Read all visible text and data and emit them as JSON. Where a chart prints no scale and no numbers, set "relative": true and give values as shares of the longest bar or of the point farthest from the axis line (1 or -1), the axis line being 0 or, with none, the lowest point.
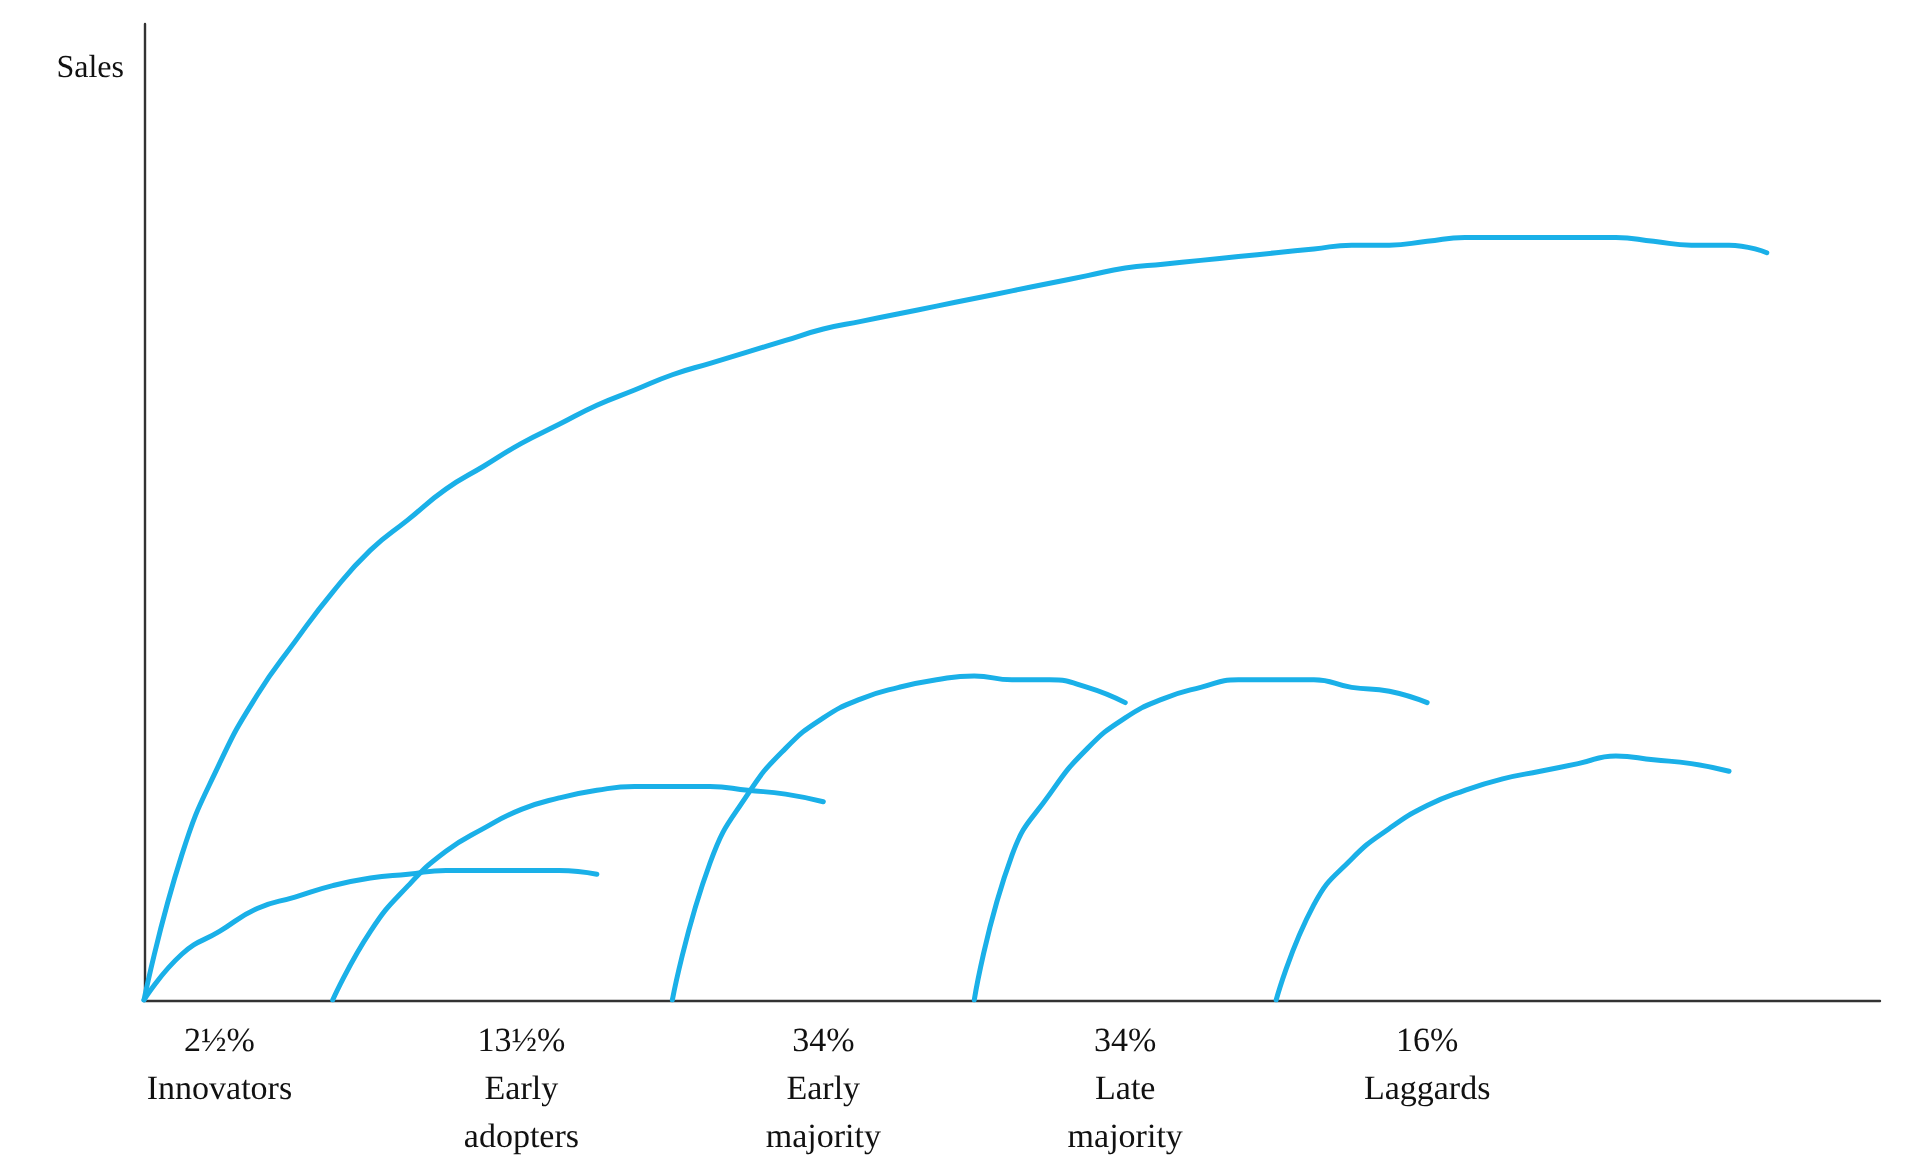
{
  "chart_data": {
    "type": "line",
    "relative": true,
    "ylabel": "Sales",
    "categories": [
      null,
      null,
      "2½%\nInnovators",
      null,
      null,
      null,
      null,
      null,
      null,
      null,
      "13½%\nEarly\nadopters",
      null,
      null,
      null,
      null,
      null,
      null,
      null,
      "34%\nEarly\nmajority",
      null,
      null,
      null,
      null,
      null,
      null,
      null,
      "34%\nLate\nmajority",
      null,
      null,
      null,
      null,
      null,
      null,
      null,
      "16%\nLaggards",
      null,
      null,
      null,
      null,
      null,
      null,
      null,
      null,
      null,
      null,
      null,
      null
    ],
    "series": [
      {
        "color": "#1ab0e8",
        "values": [
          0,
          0.19,
          0.31,
          0.4,
          0.47,
          0.535,
          0.59,
          0.63,
          0.67,
          0.7,
          0.73,
          0.755,
          0.78,
          0.8,
          0.82,
          0.835,
          0.85,
          0.865,
          0.88,
          0.89,
          0.9,
          0.91,
          0.92,
          0.93,
          0.94,
          0.95,
          0.96,
          0.965,
          0.97,
          0.975,
          0.98,
          0.985,
          0.99,
          0.99,
          0.995,
          1,
          1,
          1,
          1,
          1,
          0.995,
          0.99,
          0.99,
          0.98,
          null,
          null,
          null
        ]
      },
      {
        "color": "#1ab0e8",
        "values": [
          0,
          0.06,
          0.09,
          0.12,
          0.135,
          0.15,
          0.16,
          0.165,
          0.17,
          0.17,
          0.17,
          0.17,
          0.165,
          null,
          null,
          null,
          null,
          null,
          null,
          null,
          null,
          null,
          null,
          null,
          null,
          null,
          null,
          null,
          null,
          null,
          null,
          null,
          null,
          null,
          null,
          null,
          null,
          null,
          null,
          null,
          null,
          null,
          null,
          null,
          null,
          null,
          null
        ]
      },
      {
        "color": "#1ab0e8",
        "values": [
          null,
          null,
          null,
          null,
          null,
          0,
          0.09,
          0.15,
          0.195,
          0.225,
          0.25,
          0.265,
          0.275,
          0.28,
          0.28,
          0.28,
          0.275,
          0.27,
          0.26,
          null,
          null,
          null,
          null,
          null,
          null,
          null,
          null,
          null,
          null,
          null,
          null,
          null,
          null,
          null,
          null,
          null,
          null,
          null,
          null,
          null,
          null,
          null,
          null,
          null,
          null,
          null,
          null
        ]
      },
      {
        "color": "#1ab0e8",
        "values": [
          null,
          null,
          null,
          null,
          null,
          null,
          null,
          null,
          null,
          null,
          null,
          null,
          null,
          null,
          0,
          0.18,
          0.27,
          0.33,
          0.37,
          0.395,
          0.41,
          0.42,
          0.425,
          0.42,
          0.42,
          0.41,
          0.39,
          null,
          null,
          null,
          null,
          null,
          null,
          null,
          null,
          null,
          null,
          null,
          null,
          null,
          null,
          null,
          null,
          null,
          null,
          null,
          null
        ]
      },
      {
        "color": "#1ab0e8",
        "values": [
          null,
          null,
          null,
          null,
          null,
          null,
          null,
          null,
          null,
          null,
          null,
          null,
          null,
          null,
          null,
          null,
          null,
          null,
          null,
          null,
          null,
          null,
          0,
          0.19,
          0.27,
          0.33,
          0.37,
          0.395,
          0.41,
          0.42,
          0.42,
          0.42,
          0.41,
          0.405,
          0.39,
          null,
          null,
          null,
          null,
          null,
          null,
          null,
          null,
          null,
          null,
          null,
          null
        ]
      },
      {
        "color": "#1ab0e8",
        "values": [
          null,
          null,
          null,
          null,
          null,
          null,
          null,
          null,
          null,
          null,
          null,
          null,
          null,
          null,
          null,
          null,
          null,
          null,
          null,
          null,
          null,
          null,
          null,
          null,
          null,
          null,
          null,
          null,
          null,
          null,
          0,
          0.125,
          0.185,
          0.225,
          0.255,
          0.275,
          0.29,
          0.3,
          0.31,
          0.32,
          0.315,
          0.31,
          0.3,
          null,
          null,
          null,
          null
        ]
      }
    ]
  }
}
